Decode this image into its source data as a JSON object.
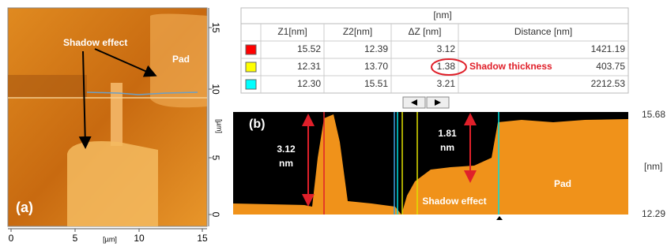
{
  "afm_image": {
    "label": "(a)",
    "x_ticks": [
      "0",
      "5",
      "10",
      "15"
    ],
    "x_unit": "[µm]",
    "y_ticks": [
      "15",
      "10",
      "5",
      "0"
    ],
    "y_unit": "[µm]",
    "annotations": [
      "Shadow effect",
      "Pad"
    ]
  },
  "table": {
    "unit": "[nm]",
    "columns": [
      "Z1[nm]",
      "Z2[nm]",
      "ΔZ [nm]",
      "Distance [nm]"
    ],
    "rows": [
      {
        "color": "#ff0000",
        "cells": [
          "15.52",
          "12.39",
          "3.12",
          "1421.19"
        ]
      },
      {
        "color": "#ffff00",
        "cells": [
          "12.31",
          "13.70",
          "1.38",
          "403.75"
        ]
      },
      {
        "color": "#00ffff",
        "cells": [
          "12.30",
          "15.51",
          "3.21",
          "2212.53"
        ]
      }
    ],
    "annotation": "Shadow thickness"
  },
  "profile": {
    "label": "(b)",
    "step_left": [
      "3.12",
      "nm"
    ],
    "step_right": [
      "1.81",
      "nm"
    ],
    "annotations": [
      "Shadow effect",
      "Pad"
    ],
    "scale_top": "15.68",
    "scale_unit": "[nm]",
    "scale_bottom": "12.29"
  }
}
